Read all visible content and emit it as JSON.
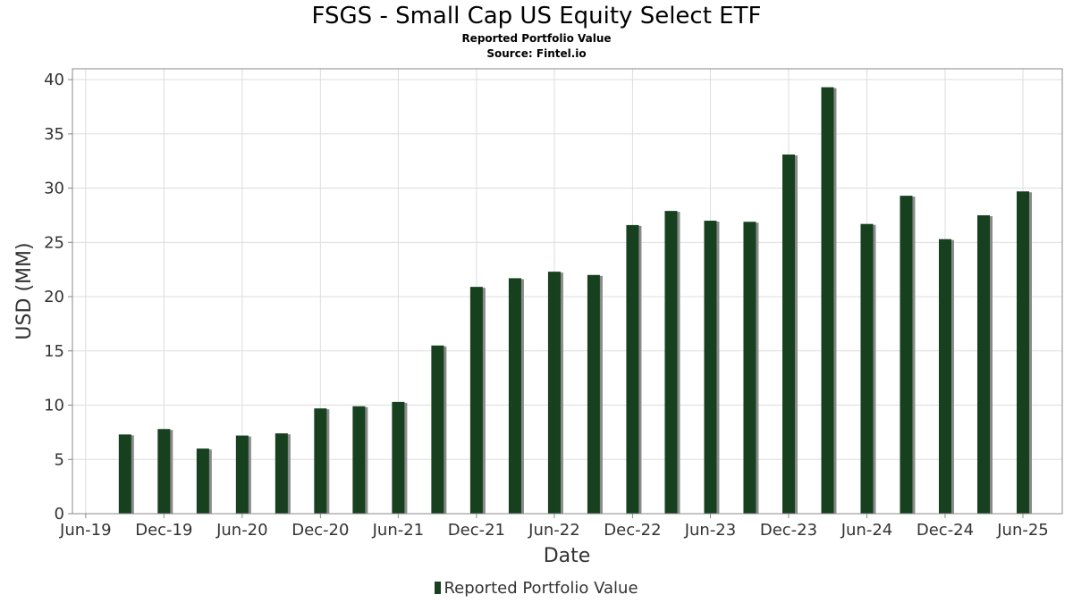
{
  "chart_data": {
    "type": "bar",
    "title": "FSGS - Small Cap US Equity Select ETF",
    "subtitle_lines": [
      "Reported Portfolio Value",
      "Source: Fintel.io"
    ],
    "xlabel": "Date",
    "ylabel": "USD (MM)",
    "ylim": [
      0,
      41
    ],
    "y_ticks": [
      0,
      5,
      10,
      15,
      20,
      25,
      30,
      35,
      40
    ],
    "x_range": [
      "2019-05-01",
      "2025-09-01"
    ],
    "x_ticks": [
      {
        "date": "2019-06-01",
        "label": "Jun-19"
      },
      {
        "date": "2019-12-01",
        "label": "Dec-19"
      },
      {
        "date": "2020-06-01",
        "label": "Jun-20"
      },
      {
        "date": "2020-12-01",
        "label": "Dec-20"
      },
      {
        "date": "2021-06-01",
        "label": "Jun-21"
      },
      {
        "date": "2021-12-01",
        "label": "Dec-21"
      },
      {
        "date": "2022-06-01",
        "label": "Jun-22"
      },
      {
        "date": "2022-12-01",
        "label": "Dec-22"
      },
      {
        "date": "2023-06-01",
        "label": "Jun-23"
      },
      {
        "date": "2023-12-01",
        "label": "Dec-23"
      },
      {
        "date": "2024-06-01",
        "label": "Jun-24"
      },
      {
        "date": "2024-12-01",
        "label": "Dec-24"
      },
      {
        "date": "2025-06-01",
        "label": "Jun-25"
      }
    ],
    "grid": true,
    "legend_position": "bottom-center",
    "series": [
      {
        "name": "Reported Portfolio Value",
        "color": "#17401f",
        "shadow_color": "#8a8a8a",
        "points": [
          {
            "x": "2019-09-01",
            "y": 7.3
          },
          {
            "x": "2019-12-01",
            "y": 7.8
          },
          {
            "x": "2020-03-01",
            "y": 6.0
          },
          {
            "x": "2020-06-01",
            "y": 7.2
          },
          {
            "x": "2020-09-01",
            "y": 7.4
          },
          {
            "x": "2020-12-01",
            "y": 9.7
          },
          {
            "x": "2021-03-01",
            "y": 9.9
          },
          {
            "x": "2021-06-01",
            "y": 10.3
          },
          {
            "x": "2021-09-01",
            "y": 15.5
          },
          {
            "x": "2021-12-01",
            "y": 20.9
          },
          {
            "x": "2022-03-01",
            "y": 21.7
          },
          {
            "x": "2022-06-01",
            "y": 22.3
          },
          {
            "x": "2022-09-01",
            "y": 22.0
          },
          {
            "x": "2022-12-01",
            "y": 26.6
          },
          {
            "x": "2023-03-01",
            "y": 27.9
          },
          {
            "x": "2023-06-01",
            "y": 27.0
          },
          {
            "x": "2023-09-01",
            "y": 26.9
          },
          {
            "x": "2023-12-01",
            "y": 33.1
          },
          {
            "x": "2024-03-01",
            "y": 39.3
          },
          {
            "x": "2024-06-01",
            "y": 26.7
          },
          {
            "x": "2024-09-01",
            "y": 29.3
          },
          {
            "x": "2024-12-01",
            "y": 25.3
          },
          {
            "x": "2025-03-01",
            "y": 27.5
          },
          {
            "x": "2025-06-01",
            "y": 29.7
          }
        ]
      }
    ]
  }
}
